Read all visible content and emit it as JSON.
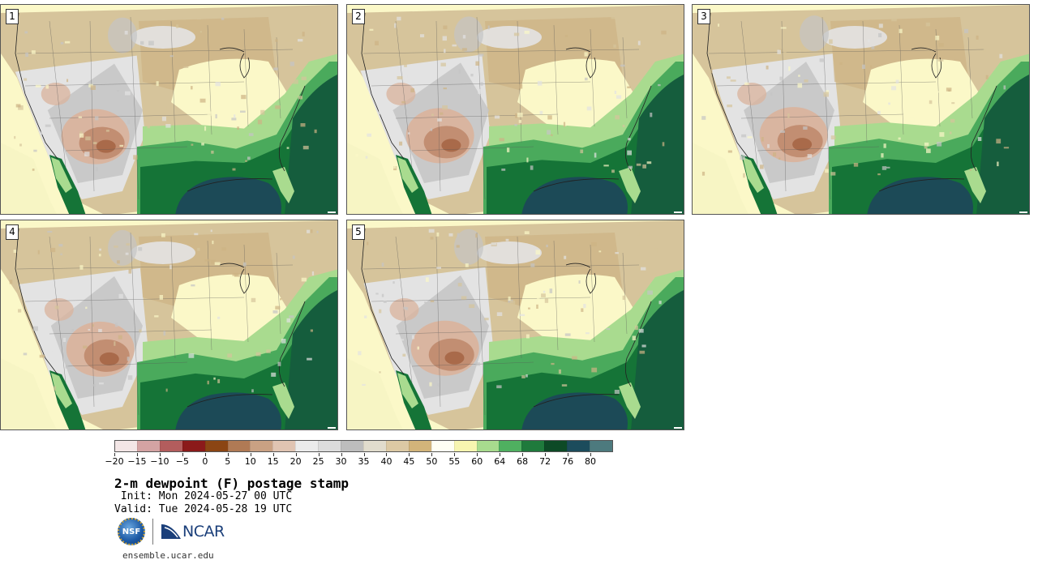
{
  "panels": [
    {
      "number": "1",
      "variant": 0
    },
    {
      "number": "2",
      "variant": 1
    },
    {
      "number": "3",
      "variant": 2
    },
    {
      "number": "4",
      "variant": 3
    },
    {
      "number": "5",
      "variant": 4
    }
  ],
  "colorbar": {
    "colors": [
      "#f3e6e6",
      "#d4a3a3",
      "#b35d5d",
      "#8b1a1a",
      "#8b4513",
      "#b07a55",
      "#c9a183",
      "#e0c4b2",
      "#ebebeb",
      "#dcdcdc",
      "#bdbdbd",
      "#e1dccd",
      "#dcc9a4",
      "#d2b47a",
      "#fffff3",
      "#f7f5b0",
      "#a8db8e",
      "#4fb060",
      "#1f7a3c",
      "#0d4a26",
      "#1c4c5c",
      "#4d7a7e"
    ],
    "tick_labels": [
      "−20",
      "−15",
      "−10",
      "−5",
      "0",
      "5",
      "10",
      "15",
      "20",
      "25",
      "30",
      "35",
      "40",
      "45",
      "50",
      "55",
      "60",
      "64",
      "68",
      "72",
      "76",
      "80"
    ]
  },
  "title": "2-m dewpoint (F) postage stamp",
  "init_line": " Init: Mon 2024-05-27 00 UTC",
  "valid_line": "Valid: Tue 2024-05-28 19 UTC",
  "logos": {
    "nsf": "NSF",
    "ncar": "NCAR"
  },
  "url": "ensemble.ucar.edu"
}
